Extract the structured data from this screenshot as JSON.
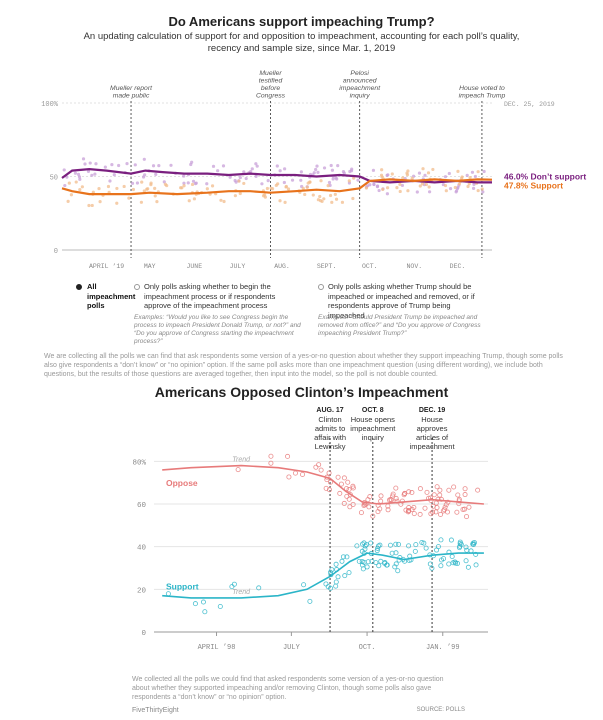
{
  "title": "Do Americans support impeaching Trump?",
  "subtitle": "An updating calculation of support for and opposition to impeachment, accounting for each poll’s quality, recency and sample size, since Mar. 1, 2019",
  "filters": [
    {
      "label": "All impeachment polls",
      "selected": true,
      "example": ""
    },
    {
      "label": "Only polls asking whether to begin the impeachment process or if respondents approve of the impeachment process",
      "selected": false,
      "example": "Examples: “Would you like to see Congress begin the process to impeach President Donald Trump, or not?” and “Do you approve of Congress starting the impeachment process?”"
    },
    {
      "label": "Only polls asking whether Trump should be impeached or impeached and removed, or if respondents approve of Trump being impeached",
      "selected": false,
      "example": "Examples: “Should President Trump be impeached and removed from office?” and “Do you approve of Congress impeaching President Trump?”"
    }
  ],
  "note": "We are collecting all the polls we can find that ask respondents some version of a yes-or-no question about whether they support impeaching Trump, though some polls also give respondents a “don’t know” or “no opinion” option. If the same poll asks more than one impeachment question (using different wording), we include both questions, but the results of those questions are averaged together, then input into the model, so the poll is not double counted.",
  "title2": "Americans Opposed Clinton’s Impeachment",
  "note2": "We collected all the polls we could find that asked respondents some version of a yes-or-no question about whether they supported impeaching and/or removing Clinton, though some polls also gave respondents a “don’t know” or “no opinion” option.",
  "footer_left": "FiveThirtyEight",
  "footer_right": "SOURCE: POLLS",
  "colors": {
    "oppose_trump": "#7a1f7f",
    "support_trump": "#e8731c",
    "oppose_clinton": "#e77a7a",
    "support_clinton": "#2bb5c8",
    "dots_oppose": "#c8a0d8",
    "dots_support": "#f2bc8c"
  },
  "chart_data": [
    {
      "type": "line",
      "title": "Do Americans support impeaching Trump?",
      "x_range": [
        "2019-03-01",
        "2019-12-25"
      ],
      "ylim": [
        0,
        100
      ],
      "y_ticks": [
        0,
        50,
        100
      ],
      "y_tick_labels": [
        "0",
        "50",
        "100%"
      ],
      "x_ticks": [
        {
          "date": "2019-04-01",
          "label": "APRIL ’19"
        },
        {
          "date": "2019-05-01",
          "label": "MAY"
        },
        {
          "date": "2019-06-01",
          "label": "JUNE"
        },
        {
          "date": "2019-07-01",
          "label": "JULY"
        },
        {
          "date": "2019-08-01",
          "label": "AUG."
        },
        {
          "date": "2019-09-01",
          "label": "SEPT."
        },
        {
          "date": "2019-10-01",
          "label": "OCT."
        },
        {
          "date": "2019-11-01",
          "label": "NOV."
        },
        {
          "date": "2019-12-01",
          "label": "DEC."
        }
      ],
      "end_label": "DEC. 25, 2019",
      "events": [
        {
          "date": "2019-04-18",
          "label": "Mueller report made public"
        },
        {
          "date": "2019-07-24",
          "label": "Mueller testified before Congress"
        },
        {
          "date": "2019-09-24",
          "label": "Pelosi announced impeachment inquiry"
        },
        {
          "date": "2019-12-18",
          "label": "House voted to impeach Trump"
        }
      ],
      "series": [
        {
          "name": "Don’t support",
          "final_label": "46.0% Don’t support",
          "points": [
            [
              "2019-03-01",
              49
            ],
            [
              "2019-03-08",
              54
            ],
            [
              "2019-03-20",
              55
            ],
            [
              "2019-04-01",
              54
            ],
            [
              "2019-04-18",
              52
            ],
            [
              "2019-04-28",
              54
            ],
            [
              "2019-05-10",
              53
            ],
            [
              "2019-05-25",
              52
            ],
            [
              "2019-06-10",
              52
            ],
            [
              "2019-06-25",
              51
            ],
            [
              "2019-07-10",
              52
            ],
            [
              "2019-07-24",
              51
            ],
            [
              "2019-08-10",
              51
            ],
            [
              "2019-08-25",
              50
            ],
            [
              "2019-09-10",
              51
            ],
            [
              "2019-09-24",
              50
            ],
            [
              "2019-10-01",
              47
            ],
            [
              "2019-10-15",
              46
            ],
            [
              "2019-11-01",
              47
            ],
            [
              "2019-11-15",
              46
            ],
            [
              "2019-12-01",
              47
            ],
            [
              "2019-12-15",
              46
            ],
            [
              "2019-12-25",
              46
            ]
          ]
        },
        {
          "name": "Support",
          "final_label": "47.8% Support",
          "points": [
            [
              "2019-03-01",
              42
            ],
            [
              "2019-03-08",
              40
            ],
            [
              "2019-03-20",
              38
            ],
            [
              "2019-04-01",
              38
            ],
            [
              "2019-04-18",
              38
            ],
            [
              "2019-05-01",
              39
            ],
            [
              "2019-05-20",
              38
            ],
            [
              "2019-06-10",
              39
            ],
            [
              "2019-06-25",
              40
            ],
            [
              "2019-07-10",
              40
            ],
            [
              "2019-07-24",
              39
            ],
            [
              "2019-08-10",
              40
            ],
            [
              "2019-08-25",
              41
            ],
            [
              "2019-09-10",
              40
            ],
            [
              "2019-09-24",
              42
            ],
            [
              "2019-10-01",
              47
            ],
            [
              "2019-10-15",
              48
            ],
            [
              "2019-11-01",
              47
            ],
            [
              "2019-11-15",
              48
            ],
            [
              "2019-12-01",
              47
            ],
            [
              "2019-12-15",
              48
            ],
            [
              "2019-12-25",
              47.8
            ]
          ]
        }
      ]
    },
    {
      "type": "line",
      "title": "Americans Opposed Clinton’s Impeachment",
      "x_range": [
        "1998-01-15",
        "1999-02-25"
      ],
      "ylim": [
        0,
        90
      ],
      "y_ticks": [
        0,
        20,
        40,
        60,
        80
      ],
      "y_tick_labels": [
        "0",
        "20",
        "40",
        "60",
        "80%"
      ],
      "x_ticks": [
        {
          "date": "1998-04-01",
          "label": "APRIL ’98"
        },
        {
          "date": "1998-07-01",
          "label": "JULY"
        },
        {
          "date": "1998-10-01",
          "label": "OCT."
        },
        {
          "date": "1999-01-01",
          "label": "JAN. ’99"
        }
      ],
      "events": [
        {
          "date": "1998-08-17",
          "date_label": "AUG. 17",
          "label": "Clinton admits to affair with Lewinsky"
        },
        {
          "date": "1998-10-08",
          "date_label": "OCT. 8",
          "label": "House opens impeachment inquiry"
        },
        {
          "date": "1998-12-19",
          "date_label": "DEC. 19",
          "label": "House approves articles of impeachment"
        }
      ],
      "trend_label": "Trend",
      "series": [
        {
          "name": "Oppose",
          "points": [
            [
              "1998-01-25",
              76
            ],
            [
              "1998-03-01",
              77
            ],
            [
              "1998-05-01",
              78
            ],
            [
              "1998-06-15",
              77
            ],
            [
              "1998-07-20",
              75
            ],
            [
              "1998-08-17",
              72
            ],
            [
              "1998-09-05",
              66
            ],
            [
              "1998-09-25",
              61
            ],
            [
              "1998-10-15",
              60
            ],
            [
              "1998-11-15",
              61
            ],
            [
              "1998-12-19",
              62
            ],
            [
              "1999-01-20",
              61
            ],
            [
              "1999-02-20",
              60
            ]
          ]
        },
        {
          "name": "Support",
          "points": [
            [
              "1998-01-25",
              17
            ],
            [
              "1998-03-01",
              16
            ],
            [
              "1998-05-01",
              16
            ],
            [
              "1998-06-15",
              17
            ],
            [
              "1998-07-20",
              20
            ],
            [
              "1998-08-17",
              26
            ],
            [
              "1998-09-10",
              33
            ],
            [
              "1998-10-01",
              37
            ],
            [
              "1998-10-20",
              36
            ],
            [
              "1998-11-15",
              34
            ],
            [
              "1998-12-19",
              36
            ],
            [
              "1999-01-20",
              37
            ],
            [
              "1999-02-20",
              37
            ]
          ]
        }
      ]
    }
  ]
}
